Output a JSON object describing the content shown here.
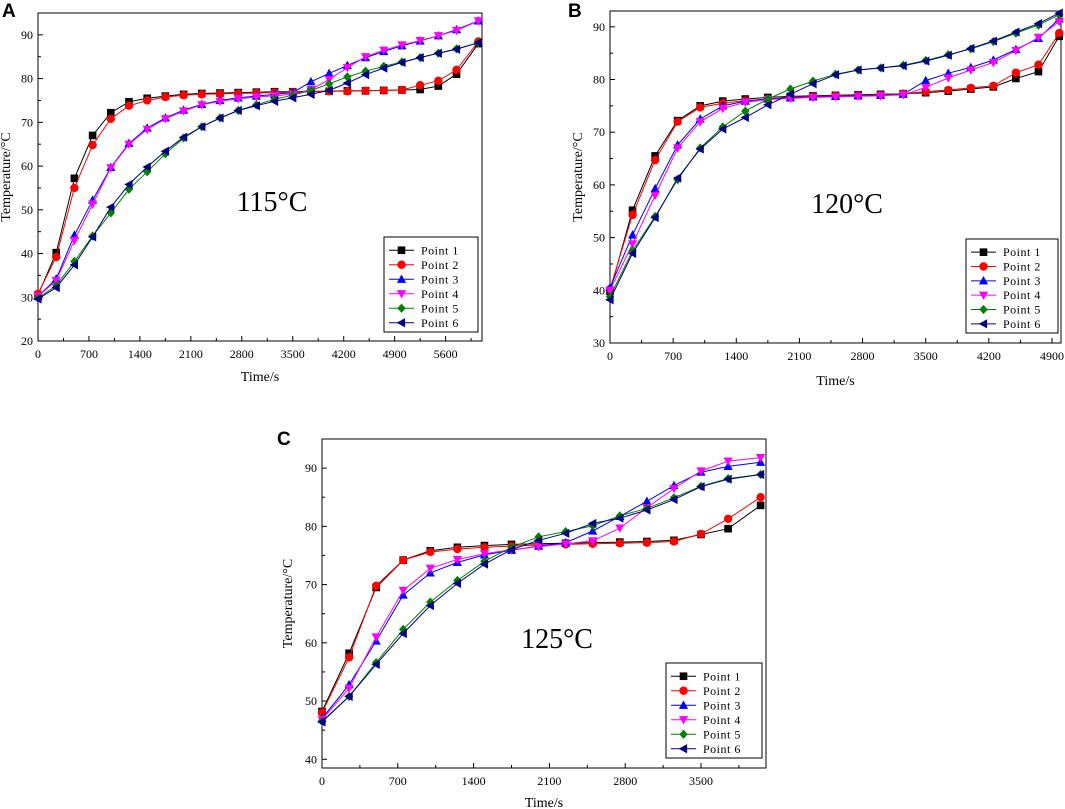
{
  "figure": {
    "type": "multi-panel line chart"
  },
  "chart_data": [
    {
      "type": "line",
      "panel": "A",
      "annotation": "115°C",
      "xlabel": "Time/s",
      "ylabel": "Temperature/°C",
      "xlim": [
        0,
        6100
      ],
      "ylim": [
        20,
        95
      ],
      "xticks": [
        0,
        700,
        1400,
        2100,
        2800,
        3500,
        4200,
        4900,
        5600
      ],
      "yticks": [
        20,
        30,
        40,
        50,
        60,
        70,
        80,
        90
      ],
      "legend_position": "bottom-right",
      "series": [
        {
          "name": "Point 1",
          "color": "#000000",
          "marker": "square",
          "x": [
            0,
            250,
            500,
            750,
            1000,
            1250,
            1500,
            1750,
            2000,
            2250,
            2500,
            2750,
            3000,
            3250,
            3500,
            3750,
            4000,
            4250,
            4500,
            4750,
            5000,
            5250,
            5500,
            5750,
            6050
          ],
          "y": [
            30.5,
            40.2,
            57.2,
            67,
            72.2,
            74.7,
            75.5,
            76,
            76.4,
            76.6,
            76.7,
            76.8,
            76.9,
            77,
            77,
            77.1,
            77.1,
            77.2,
            77.2,
            77.3,
            77.4,
            77.5,
            78.3,
            81,
            88
          ]
        },
        {
          "name": "Point 2",
          "color": "#ff0000",
          "marker": "circle",
          "x": [
            0,
            250,
            500,
            750,
            1000,
            1250,
            1500,
            1750,
            2000,
            2250,
            2500,
            2750,
            3000,
            3250,
            3500,
            3750,
            4000,
            4250,
            4500,
            4750,
            5000,
            5250,
            5500,
            5750,
            6050
          ],
          "y": [
            30.8,
            39.2,
            55,
            64.8,
            70.8,
            73.8,
            75,
            75.8,
            76.2,
            76.4,
            76.5,
            76.6,
            76.7,
            76.8,
            76.9,
            77,
            77.1,
            77.1,
            77.2,
            77.3,
            77.4,
            78.5,
            79.5,
            82,
            88.5
          ]
        },
        {
          "name": "Point 3",
          "color": "#0000ff",
          "marker": "triangle-up",
          "x": [
            0,
            250,
            500,
            750,
            1000,
            1250,
            1500,
            1750,
            2000,
            2250,
            2500,
            2750,
            3000,
            3250,
            3500,
            3750,
            4000,
            4250,
            4500,
            4750,
            5000,
            5250,
            5500,
            5750,
            6050
          ],
          "y": [
            30.2,
            34.2,
            44.2,
            52.2,
            59.7,
            65.2,
            68.7,
            71,
            72.8,
            74.1,
            75,
            75.6,
            76,
            76.4,
            76.8,
            79.3,
            81.2,
            83,
            84.8,
            86.2,
            87.5,
            88.6,
            89.8,
            91.2,
            93.2
          ]
        },
        {
          "name": "Point 4",
          "color": "#ff00ff",
          "marker": "triangle-down",
          "x": [
            0,
            250,
            500,
            750,
            1000,
            1250,
            1500,
            1750,
            2000,
            2250,
            2500,
            2750,
            3000,
            3250,
            3500,
            3750,
            4000,
            4250,
            4500,
            4750,
            5000,
            5250,
            5500,
            5750,
            6050
          ],
          "y": [
            30.2,
            33.8,
            43,
            51.3,
            59.6,
            65,
            68.4,
            70.8,
            72.6,
            74,
            74.8,
            75.4,
            75.8,
            76.1,
            76.4,
            77.5,
            79.8,
            82.5,
            85,
            86.5,
            87.7,
            88.7,
            89.8,
            91,
            93.2
          ]
        },
        {
          "name": "Point 5",
          "color": "#008000",
          "marker": "diamond",
          "x": [
            0,
            250,
            500,
            750,
            1000,
            1250,
            1500,
            1750,
            2000,
            2250,
            2500,
            2750,
            3000,
            3250,
            3500,
            3750,
            4000,
            4250,
            4500,
            4750,
            5000,
            5250,
            5500,
            5750,
            6050
          ],
          "y": [
            29.8,
            32.7,
            38.2,
            44,
            49.3,
            54.7,
            58.7,
            62.8,
            66.4,
            69,
            71,
            72.7,
            74,
            75.3,
            76.2,
            77.3,
            78.8,
            80.4,
            81.7,
            82.8,
            83.8,
            84.8,
            85.8,
            86.8,
            88.2
          ]
        },
        {
          "name": "Point 6",
          "color": "#000080",
          "marker": "triangle-left",
          "x": [
            0,
            250,
            500,
            750,
            1000,
            1250,
            1500,
            1750,
            2000,
            2250,
            2500,
            2750,
            3000,
            3250,
            3500,
            3750,
            4000,
            4250,
            4500,
            4750,
            5000,
            5250,
            5500,
            5750,
            6050
          ],
          "y": [
            29.6,
            32.2,
            37.4,
            43.8,
            50.6,
            55.8,
            59.8,
            63.4,
            66.6,
            69,
            71,
            72.7,
            73.8,
            74.8,
            75.6,
            76.4,
            77.3,
            79,
            80.9,
            82.4,
            83.7,
            84.8,
            85.8,
            86.7,
            88.2
          ]
        }
      ]
    },
    {
      "type": "line",
      "panel": "B",
      "annotation": "120°C",
      "xlabel": "Time/s",
      "ylabel": "Temperature/°C",
      "xlim": [
        0,
        5000
      ],
      "ylim": [
        30,
        93
      ],
      "xticks": [
        0,
        700,
        1400,
        2100,
        2800,
        3500,
        4200,
        4900
      ],
      "yticks": [
        30,
        40,
        50,
        60,
        70,
        80,
        90
      ],
      "legend_position": "bottom-right",
      "series": [
        {
          "name": "Point 1",
          "color": "#000000",
          "marker": "square",
          "x": [
            0,
            250,
            500,
            750,
            1000,
            1250,
            1500,
            1750,
            2000,
            2250,
            2500,
            2750,
            3000,
            3250,
            3500,
            3750,
            4000,
            4250,
            4500,
            4750,
            4980
          ],
          "y": [
            39.8,
            55.2,
            65.5,
            72.2,
            75,
            75.9,
            76.3,
            76.6,
            76.8,
            76.9,
            77,
            77.1,
            77.2,
            77.3,
            77.5,
            77.8,
            78.2,
            78.6,
            80.2,
            81.5,
            88.2
          ]
        },
        {
          "name": "Point 2",
          "color": "#ff0000",
          "marker": "circle",
          "x": [
            0,
            250,
            500,
            750,
            1000,
            1250,
            1500,
            1750,
            2000,
            2250,
            2500,
            2750,
            3000,
            3250,
            3500,
            3750,
            4000,
            4250,
            4500,
            4750,
            4980
          ],
          "y": [
            40.2,
            54.3,
            64.7,
            72,
            74.7,
            75.5,
            76,
            76.3,
            76.6,
            76.8,
            76.9,
            77,
            77.1,
            77.3,
            77.7,
            78,
            78.4,
            78.8,
            81.3,
            82.8,
            88.8
          ]
        },
        {
          "name": "Point 3",
          "color": "#0000ff",
          "marker": "triangle-up",
          "x": [
            0,
            250,
            500,
            750,
            1000,
            1250,
            1500,
            1750,
            2000,
            2250,
            2500,
            2750,
            3000,
            3250,
            3500,
            3750,
            4000,
            4250,
            4500,
            4750,
            4980
          ],
          "y": [
            40.5,
            50.5,
            59.3,
            67.6,
            72.5,
            75,
            75.9,
            76.3,
            76.5,
            76.7,
            76.8,
            76.9,
            77,
            77.2,
            79.8,
            81.2,
            82.3,
            83.7,
            85.7,
            87.8,
            91.5
          ]
        },
        {
          "name": "Point 4",
          "color": "#ff00ff",
          "marker": "triangle-down",
          "x": [
            0,
            250,
            500,
            750,
            1000,
            1250,
            1500,
            1750,
            2000,
            2250,
            2500,
            2750,
            3000,
            3250,
            3500,
            3750,
            4000,
            4250,
            4500,
            4750,
            4980
          ],
          "y": [
            40,
            48.8,
            58,
            67,
            72,
            74.5,
            75.7,
            76.2,
            76.4,
            76.6,
            76.7,
            76.8,
            76.9,
            77.1,
            78.5,
            80.3,
            81.8,
            83.2,
            85.5,
            88,
            91
          ]
        },
        {
          "name": "Point 5",
          "color": "#008000",
          "marker": "diamond",
          "x": [
            0,
            250,
            500,
            750,
            1000,
            1250,
            1500,
            1750,
            2000,
            2250,
            2500,
            2750,
            3000,
            3250,
            3500,
            3750,
            4000,
            4250,
            4500,
            4750,
            4980
          ],
          "y": [
            38.8,
            47.5,
            54,
            61,
            67,
            71,
            74,
            76.3,
            78.2,
            79.7,
            81,
            81.8,
            82.2,
            82.7,
            83.6,
            84.7,
            85.8,
            87.2,
            88.8,
            90.3,
            92.3
          ]
        },
        {
          "name": "Point 6",
          "color": "#000080",
          "marker": "triangle-left",
          "x": [
            0,
            250,
            500,
            750,
            1000,
            1250,
            1500,
            1750,
            2000,
            2250,
            2500,
            2750,
            3000,
            3250,
            3500,
            3750,
            4000,
            4250,
            4500,
            4750,
            4980
          ],
          "y": [
            38.2,
            47,
            53.8,
            61.3,
            66.8,
            70.6,
            72.8,
            75.2,
            77.2,
            79.2,
            80.9,
            81.8,
            82.2,
            82.6,
            83.5,
            84.6,
            85.9,
            87.3,
            89,
            90.6,
            92.6
          ]
        }
      ]
    },
    {
      "type": "line",
      "panel": "C",
      "annotation": "125°C",
      "xlabel": "Time/s",
      "ylabel": "Temperature/°C",
      "xlim": [
        0,
        4100
      ],
      "ylim": [
        38.5,
        95
      ],
      "xticks": [
        0,
        700,
        1400,
        2100,
        2800,
        3500
      ],
      "yticks": [
        40,
        50,
        60,
        70,
        80,
        90
      ],
      "legend_position": "bottom-right",
      "series": [
        {
          "name": "Point 1",
          "color": "#000000",
          "marker": "square",
          "x": [
            0,
            250,
            500,
            750,
            1000,
            1250,
            1500,
            1750,
            2000,
            2250,
            2500,
            2750,
            3000,
            3250,
            3500,
            3750,
            4050
          ],
          "y": [
            48.2,
            58.2,
            69.5,
            74.2,
            75.8,
            76.4,
            76.7,
            76.9,
            77,
            77.1,
            77.2,
            77.3,
            77.4,
            77.6,
            78.6,
            79.6,
            83.6
          ]
        },
        {
          "name": "Point 2",
          "color": "#ff0000",
          "marker": "circle",
          "x": [
            0,
            250,
            500,
            750,
            1000,
            1250,
            1500,
            1750,
            2000,
            2250,
            2500,
            2750,
            3000,
            3250,
            3500,
            3750,
            4050
          ],
          "y": [
            48,
            57.5,
            69.8,
            74.2,
            75.6,
            76.1,
            76.4,
            76.6,
            76.8,
            76.9,
            77,
            77.1,
            77.2,
            77.4,
            78.7,
            81.3,
            85
          ]
        },
        {
          "name": "Point 3",
          "color": "#0000ff",
          "marker": "triangle-up",
          "x": [
            0,
            250,
            500,
            750,
            1000,
            1250,
            1500,
            1750,
            2000,
            2250,
            2500,
            2750,
            3000,
            3250,
            3500,
            3750,
            4050
          ],
          "y": [
            47,
            52.8,
            60.3,
            68.2,
            72,
            73.8,
            75.1,
            75.9,
            76.6,
            77.2,
            79.2,
            81.7,
            84.3,
            87,
            89.3,
            90.3,
            91
          ]
        },
        {
          "name": "Point 4",
          "color": "#ff00ff",
          "marker": "triangle-down",
          "x": [
            0,
            250,
            500,
            750,
            1000,
            1250,
            1500,
            1750,
            2000,
            2250,
            2500,
            2750,
            3000,
            3250,
            3500,
            3750,
            4050
          ],
          "y": [
            46.8,
            52.2,
            61,
            69,
            72.8,
            74.3,
            75.3,
            76,
            76.5,
            77,
            77.5,
            79.7,
            83.2,
            86.5,
            89.5,
            91.2,
            91.8
          ]
        },
        {
          "name": "Point 5",
          "color": "#008000",
          "marker": "diamond",
          "x": [
            0,
            250,
            500,
            750,
            1000,
            1250,
            1500,
            1750,
            2000,
            2250,
            2500,
            2750,
            3000,
            3250,
            3500,
            3750,
            4050
          ],
          "y": [
            46.5,
            50.8,
            56.6,
            62.3,
            67,
            70.7,
            74,
            76.4,
            78.2,
            79.1,
            80.1,
            81.8,
            83.1,
            84.9,
            86.9,
            88.2,
            88.9
          ]
        },
        {
          "name": "Point 6",
          "color": "#000080",
          "marker": "triangle-left",
          "x": [
            0,
            250,
            500,
            750,
            1000,
            1250,
            1500,
            1750,
            2000,
            2250,
            2500,
            2750,
            3000,
            3250,
            3500,
            3750,
            4050
          ],
          "y": [
            46.4,
            50.8,
            56.3,
            61.6,
            66.4,
            70.2,
            73.5,
            76,
            77.6,
            78.8,
            80.5,
            81.4,
            82.8,
            84.6,
            86.8,
            88.1,
            88.9
          ]
        }
      ]
    }
  ]
}
